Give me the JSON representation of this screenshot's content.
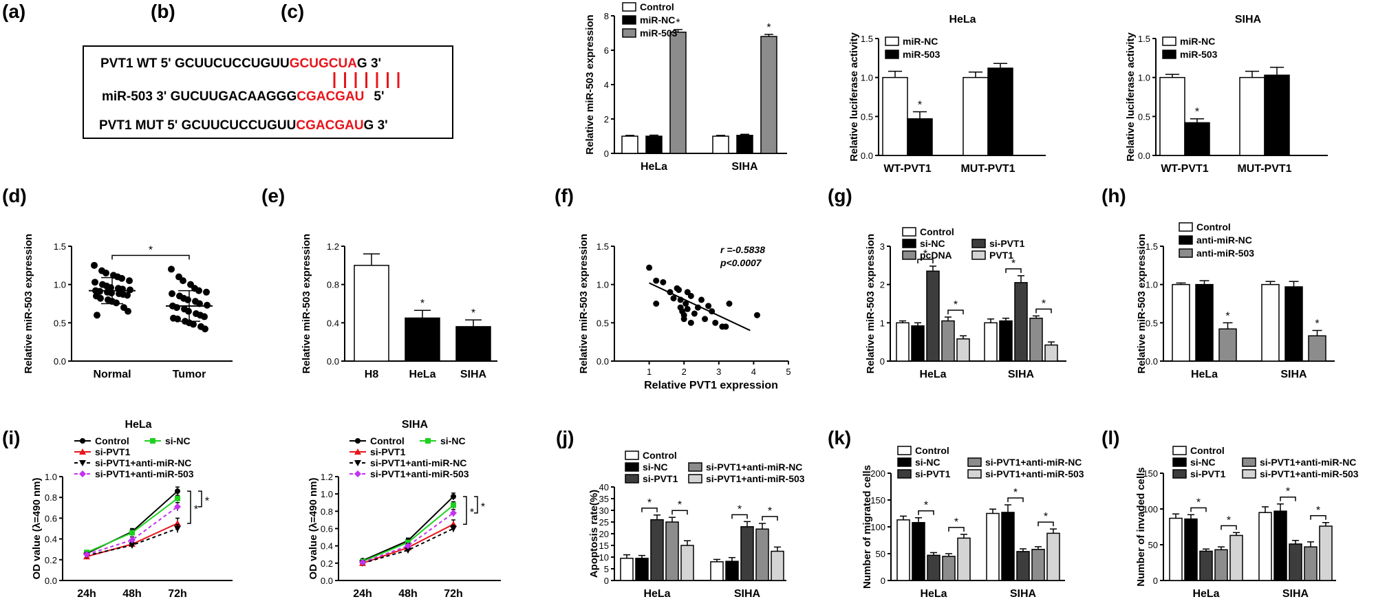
{
  "panel_labels": [
    "(a)",
    "(b)",
    "(c)",
    "(d)",
    "(e)",
    "(f)",
    "(g)",
    "(h)",
    "(i)",
    "(j)",
    "(k)",
    "(l)"
  ],
  "colors": {
    "red": "#e8141b",
    "dark_gray": "#3d3d3d",
    "mid_gray": "#8c8c8c",
    "light_gray": "#d4d4d4",
    "green": "#1fd11f",
    "purple": "#c431f0",
    "black": "#000000",
    "white": "#ffffff"
  },
  "sequence": {
    "wt_prefix": "PVT1 WT 5' GCUUCUCCUGUU",
    "wt_red": "GCUGCUA",
    "wt_suffix": "G 3'",
    "mir_prefix": "miR-503 3' GUCUUGACAAGGG",
    "mir_red": "CGACGAU",
    "mir_suffix": "5'",
    "mut_prefix": "PVT1 MUT 5' GCUUCUCCUGUU",
    "mut_red": "CGACGAU",
    "mut_suffix": "G 3'",
    "pair_lines": 7
  },
  "chart_data": [
    {
      "id": "b",
      "type": "bar",
      "ylabel": "Relative miR-503 expression",
      "ylim": [
        0,
        8
      ],
      "yticks": [
        0,
        2,
        4,
        6,
        8
      ],
      "categories": [
        "HeLa",
        "SIHA"
      ],
      "series": [
        {
          "name": "Control",
          "values": [
            1.0,
            1.0
          ],
          "errors": [
            0.05,
            0.05
          ]
        },
        {
          "name": "miR-NC",
          "values": [
            1.0,
            1.05
          ],
          "errors": [
            0.06,
            0.06
          ]
        },
        {
          "name": "miR-503",
          "values": [
            7.05,
            6.8
          ],
          "errors": [
            0.15,
            0.12
          ]
        }
      ],
      "significance": [
        "*",
        "*"
      ]
    },
    {
      "id": "c1",
      "type": "bar",
      "title": "HeLa",
      "ylabel": "Relative luciferase activity",
      "ylim": [
        0,
        1.5
      ],
      "yticks": [
        "0.0",
        "0.5",
        "1.0",
        "1.5"
      ],
      "categories": [
        "WT-PVT1",
        "MUT-PVT1"
      ],
      "series": [
        {
          "name": "miR-NC",
          "values": [
            1.0,
            1.0
          ],
          "errors": [
            0.08,
            0.07
          ]
        },
        {
          "name": "miR-503",
          "values": [
            0.47,
            1.12
          ],
          "errors": [
            0.09,
            0.06
          ]
        }
      ],
      "significance": [
        "*"
      ]
    },
    {
      "id": "c2",
      "type": "bar",
      "title": "SIHA",
      "ylabel": "Relative luciferase activity",
      "ylim": [
        0,
        1.5
      ],
      "yticks": [
        "0.0",
        "0.5",
        "1.0",
        "1.5"
      ],
      "categories": [
        "WT-PVT1",
        "MUT-PVT1"
      ],
      "series": [
        {
          "name": "miR-NC",
          "values": [
            1.0,
            1.0
          ],
          "errors": [
            0.04,
            0.08
          ]
        },
        {
          "name": "miR-503",
          "values": [
            0.42,
            1.03
          ],
          "errors": [
            0.05,
            0.1
          ]
        }
      ],
      "significance": [
        "*"
      ]
    },
    {
      "id": "d",
      "type": "scatter",
      "ylabel": "Relative miR-503 expression",
      "ylim": [
        0,
        1.5
      ],
      "yticks": [
        "0.0",
        "0.5",
        "1.0",
        "1.5"
      ],
      "categories": [
        "Normal",
        "Tumor"
      ],
      "groups": [
        {
          "name": "Normal",
          "mean": 0.92,
          "sd": 0.17,
          "values": [
            1.25,
            1.18,
            1.15,
            1.12,
            1.1,
            1.08,
            1.05,
            1.03,
            1.0,
            0.98,
            0.96,
            0.95,
            0.94,
            0.93,
            0.92,
            0.91,
            0.9,
            0.89,
            0.88,
            0.87,
            0.86,
            0.85,
            0.82,
            0.8,
            0.78,
            0.76,
            0.7,
            0.65,
            0.6
          ]
        },
        {
          "name": "Tumor",
          "mean": 0.72,
          "sd": 0.2,
          "values": [
            1.2,
            1.1,
            1.05,
            1.0,
            0.95,
            0.92,
            0.9,
            0.88,
            0.85,
            0.82,
            0.8,
            0.78,
            0.75,
            0.73,
            0.72,
            0.7,
            0.68,
            0.65,
            0.62,
            0.6,
            0.58,
            0.56,
            0.55,
            0.52,
            0.5,
            0.48,
            0.45,
            0.42
          ]
        }
      ],
      "significance": "*"
    },
    {
      "id": "e",
      "type": "bar",
      "ylabel": "Relative miR-503 expression",
      "ylim": [
        0,
        1.2
      ],
      "yticks": [
        "0.0",
        "0.4",
        "0.8",
        "1.2"
      ],
      "categories": [
        "H8",
        "HeLa",
        "SIHA"
      ],
      "values": [
        1.0,
        0.45,
        0.36
      ],
      "errors": [
        0.12,
        0.08,
        0.07
      ],
      "significance": [
        "",
        "*",
        "*"
      ]
    },
    {
      "id": "f",
      "type": "scatter",
      "xlabel": "Relative PVT1 expression",
      "ylabel": "Relative miR-503 expression",
      "xlim": [
        0,
        5
      ],
      "ylim": [
        0,
        1.5
      ],
      "xticks": [
        "1",
        "2",
        "3",
        "4",
        "5"
      ],
      "yticks": [
        "0.0",
        "0.5",
        "1.0",
        "1.5"
      ],
      "r_label": "r =-0.5838",
      "p_label": "p<0.0007",
      "points": [
        [
          1.0,
          1.22
        ],
        [
          1.2,
          1.05
        ],
        [
          1.4,
          1.03
        ],
        [
          1.2,
          0.75
        ],
        [
          1.6,
          0.9
        ],
        [
          1.7,
          0.82
        ],
        [
          1.8,
          0.95
        ],
        [
          1.85,
          0.93
        ],
        [
          1.9,
          0.8
        ],
        [
          1.9,
          0.7
        ],
        [
          1.95,
          0.65
        ],
        [
          2.0,
          0.6
        ],
        [
          2.0,
          0.55
        ],
        [
          2.05,
          0.75
        ],
        [
          2.1,
          0.68
        ],
        [
          2.1,
          0.9
        ],
        [
          2.2,
          0.85
        ],
        [
          2.2,
          0.5
        ],
        [
          2.3,
          0.62
        ],
        [
          2.4,
          0.7
        ],
        [
          2.5,
          0.8
        ],
        [
          2.6,
          0.55
        ],
        [
          2.7,
          0.72
        ],
        [
          2.8,
          0.65
        ],
        [
          2.9,
          0.5
        ],
        [
          3.1,
          0.45
        ],
        [
          3.2,
          0.45
        ],
        [
          3.3,
          0.75
        ],
        [
          4.1,
          0.6
        ]
      ],
      "fit": [
        [
          1.0,
          1.02
        ],
        [
          3.9,
          0.4
        ]
      ]
    },
    {
      "id": "g",
      "type": "bar",
      "ylabel": "Relative miR-503 expression",
      "ylim": [
        0,
        3
      ],
      "yticks": [
        "0",
        "1",
        "2",
        "3"
      ],
      "categories": [
        "HeLa",
        "SIHA"
      ],
      "series": [
        {
          "name": "Control",
          "values": [
            1.0,
            1.0
          ],
          "errors": [
            0.05,
            0.1
          ]
        },
        {
          "name": "si-NC",
          "values": [
            0.92,
            1.05
          ],
          "errors": [
            0.08,
            0.07
          ]
        },
        {
          "name": "si-PVT1",
          "values": [
            2.35,
            2.05
          ],
          "errors": [
            0.13,
            0.18
          ]
        },
        {
          "name": "pcDNA",
          "values": [
            1.05,
            1.12
          ],
          "errors": [
            0.1,
            0.06
          ]
        },
        {
          "name": "PVT1",
          "values": [
            0.58,
            0.42
          ],
          "errors": [
            0.08,
            0.08
          ]
        }
      ],
      "brackets": [
        [
          1,
          2
        ],
        [
          3,
          4
        ]
      ],
      "significance": "*"
    },
    {
      "id": "h",
      "type": "bar",
      "ylabel": "Relative miR-503 expression",
      "ylim": [
        0,
        1.5
      ],
      "yticks": [
        "0.0",
        "0.5",
        "1.0",
        "1.5"
      ],
      "categories": [
        "HeLa",
        "SIHA"
      ],
      "series": [
        {
          "name": "Control",
          "values": [
            1.0,
            1.0
          ],
          "errors": [
            0.02,
            0.04
          ]
        },
        {
          "name": "anti-miR-NC",
          "values": [
            1.0,
            0.97
          ],
          "errors": [
            0.05,
            0.07
          ]
        },
        {
          "name": "anti-miR-503",
          "values": [
            0.42,
            0.33
          ],
          "errors": [
            0.08,
            0.07
          ]
        }
      ],
      "significance": [
        "*",
        "*"
      ]
    },
    {
      "id": "i1",
      "type": "line",
      "title": "HeLa",
      "ylabel": "OD value (λ=490 nm)",
      "ylim": [
        0,
        1.0
      ],
      "yticks": [
        "0.0",
        "0.2",
        "0.4",
        "0.6",
        "0.8",
        "1.0"
      ],
      "x": [
        "24h",
        "48h",
        "72h"
      ],
      "series": [
        {
          "name": "Control",
          "values": [
            0.26,
            0.47,
            0.86
          ],
          "errors": [
            0.02,
            0.03,
            0.04
          ]
        },
        {
          "name": "si-NC",
          "values": [
            0.27,
            0.46,
            0.79
          ],
          "errors": [
            0.02,
            0.03,
            0.03
          ]
        },
        {
          "name": "si-PVT1",
          "values": [
            0.23,
            0.35,
            0.55
          ],
          "errors": [
            0.02,
            0.03,
            0.05
          ]
        },
        {
          "name": "si-PVT1+anti-miR-NC",
          "values": [
            0.24,
            0.34,
            0.5
          ],
          "errors": [
            0.02,
            0.03,
            0.04
          ]
        },
        {
          "name": "si-PVT1+anti-miR-503",
          "values": [
            0.25,
            0.39,
            0.71
          ],
          "errors": [
            0.02,
            0.03,
            0.04
          ]
        }
      ],
      "significance": [
        "*",
        "*"
      ]
    },
    {
      "id": "i2",
      "type": "line",
      "title": "SIHA",
      "ylabel": "OD value (λ=490 nm)",
      "ylim": [
        0,
        1.2
      ],
      "yticks": [
        "0.0",
        "0.2",
        "0.4",
        "0.6",
        "0.8",
        "1.0",
        "1.2"
      ],
      "x": [
        "24h",
        "48h",
        "72h"
      ],
      "series": [
        {
          "name": "Control",
          "values": [
            0.23,
            0.46,
            0.97
          ],
          "errors": [
            0.02,
            0.03,
            0.04
          ]
        },
        {
          "name": "si-NC",
          "values": [
            0.22,
            0.44,
            0.87
          ],
          "errors": [
            0.02,
            0.03,
            0.04
          ]
        },
        {
          "name": "si-PVT1",
          "values": [
            0.2,
            0.38,
            0.65
          ],
          "errors": [
            0.02,
            0.03,
            0.05
          ]
        },
        {
          "name": "si-PVT1+anti-miR-NC",
          "values": [
            0.2,
            0.35,
            0.6
          ],
          "errors": [
            0.02,
            0.03,
            0.04
          ]
        },
        {
          "name": "si-PVT1+anti-miR-503",
          "values": [
            0.21,
            0.4,
            0.78
          ],
          "errors": [
            0.02,
            0.03,
            0.04
          ]
        }
      ],
      "significance": [
        "*",
        "*"
      ]
    },
    {
      "id": "j",
      "type": "bar",
      "ylabel": "Apoptosis rate(%)",
      "ylim": [
        0,
        40
      ],
      "yticks": [
        "0",
        "5",
        "10",
        "15",
        "20",
        "25",
        "30",
        "35",
        "40"
      ],
      "categories": [
        "HeLa",
        "SIHA"
      ],
      "series": [
        {
          "name": "Control",
          "values": [
            9.5,
            8.0
          ],
          "errors": [
            1.5,
            1.0
          ]
        },
        {
          "name": "si-NC",
          "values": [
            9.5,
            8.2
          ],
          "errors": [
            1.2,
            1.6
          ]
        },
        {
          "name": "si-PVT1",
          "values": [
            26,
            23
          ],
          "errors": [
            2.0,
            2.2
          ]
        },
        {
          "name": "si-PVT1+anti-miR-NC",
          "values": [
            25,
            22
          ],
          "errors": [
            2.0,
            2.4
          ]
        },
        {
          "name": "si-PVT1+anti-miR-503",
          "values": [
            15,
            12.5
          ],
          "errors": [
            2.0,
            1.8
          ]
        }
      ],
      "brackets": [
        [
          1,
          2
        ],
        [
          3,
          4
        ]
      ],
      "significance": "*"
    },
    {
      "id": "k",
      "type": "bar",
      "ylabel": "Number of migrated cells",
      "ylim": [
        0,
        200
      ],
      "yticks": [
        "0",
        "50",
        "100",
        "150",
        "200"
      ],
      "categories": [
        "HeLa",
        "SIHA"
      ],
      "series": [
        {
          "name": "Control",
          "values": [
            113,
            125
          ],
          "errors": [
            7,
            8
          ]
        },
        {
          "name": "si-NC",
          "values": [
            108,
            127
          ],
          "errors": [
            9,
            14
          ]
        },
        {
          "name": "si-PVT1",
          "values": [
            47,
            54
          ],
          "errors": [
            5,
            5
          ]
        },
        {
          "name": "si-PVT1+anti-miR-NC",
          "values": [
            45,
            58
          ],
          "errors": [
            5,
            5
          ]
        },
        {
          "name": "si-PVT1+anti-miR-503",
          "values": [
            79,
            88
          ],
          "errors": [
            7,
            8
          ]
        }
      ],
      "brackets": [
        [
          1,
          2
        ],
        [
          3,
          4
        ]
      ],
      "significance": "*"
    },
    {
      "id": "l",
      "type": "bar",
      "ylabel": "Number of invaded cells",
      "ylim": [
        0,
        150
      ],
      "yticks": [
        "0",
        "50",
        "100",
        "150"
      ],
      "categories": [
        "HeLa",
        "SIHA"
      ],
      "series": [
        {
          "name": "Control",
          "values": [
            87,
            95
          ],
          "errors": [
            6,
            8
          ]
        },
        {
          "name": "si-NC",
          "values": [
            86,
            97
          ],
          "errors": [
            6,
            10
          ]
        },
        {
          "name": "si-PVT1",
          "values": [
            41,
            51
          ],
          "errors": [
            3,
            5
          ]
        },
        {
          "name": "si-PVT1+anti-miR-NC",
          "values": [
            43,
            47
          ],
          "errors": [
            4,
            7
          ]
        },
        {
          "name": "si-PVT1+anti-miR-503",
          "values": [
            63,
            76
          ],
          "errors": [
            4,
            5
          ]
        }
      ],
      "brackets": [
        [
          1,
          2
        ],
        [
          3,
          4
        ]
      ],
      "significance": "*"
    }
  ]
}
